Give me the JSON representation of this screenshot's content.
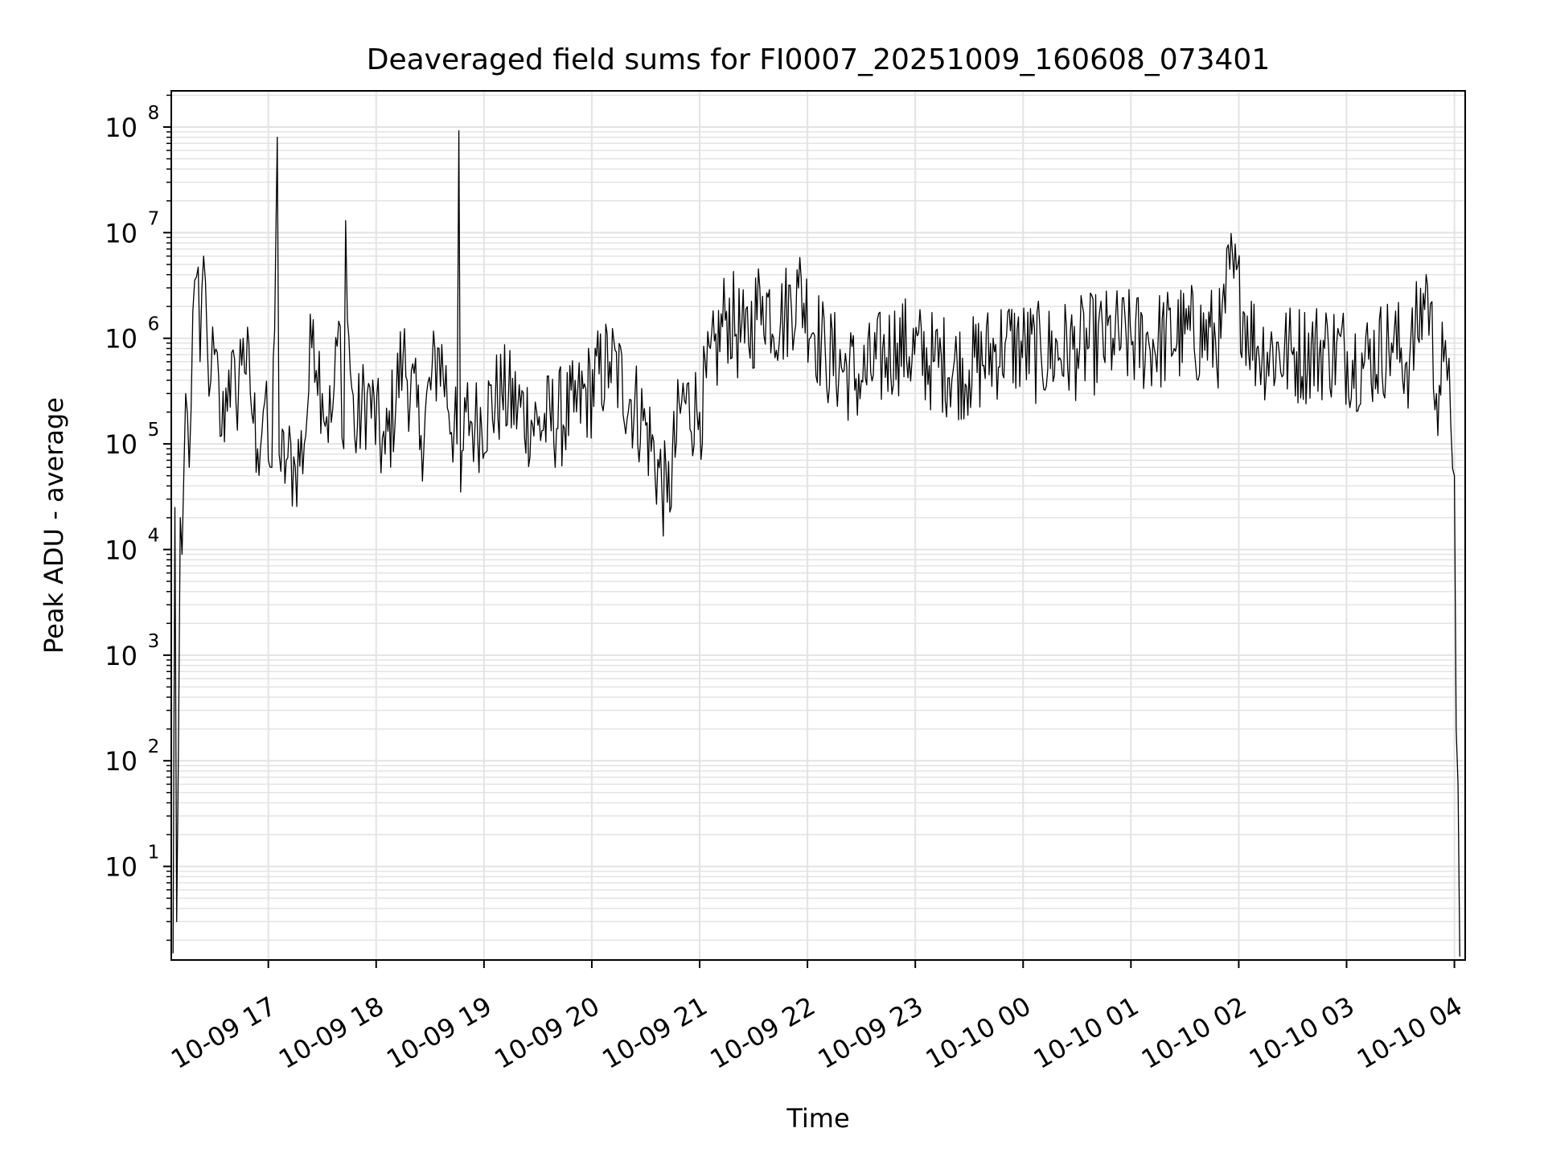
{
  "chart_data": {
    "type": "line",
    "title": "Deaveraged field sums for FI0007_20251009_160608_073401",
    "xlabel": "Time",
    "ylabel": "Peak ADU - average",
    "yscale": "log",
    "ylim": [
      1.3,
      220000000
    ],
    "xlim": [
      "2025-10-09 16:06",
      "2025-10-10 04:06"
    ],
    "grid": true,
    "line_color": "#000000",
    "grid_color": "#e3e3e3",
    "x_ticks": [
      "10-09 17",
      "10-09 18",
      "10-09 19",
      "10-09 20",
      "10-09 21",
      "10-09 22",
      "10-09 23",
      "10-10 00",
      "10-10 01",
      "10-10 02",
      "10-10 03",
      "10-10 04"
    ],
    "y_ticks": [
      {
        "value": 10,
        "base": "10",
        "exp": "1"
      },
      {
        "value": 100,
        "base": "10",
        "exp": "2"
      },
      {
        "value": 1000,
        "base": "10",
        "exp": "3"
      },
      {
        "value": 10000,
        "base": "10",
        "exp": "4"
      },
      {
        "value": 100000,
        "base": "10",
        "exp": "5"
      },
      {
        "value": 1000000,
        "base": "10",
        "exp": "6"
      },
      {
        "value": 10000000,
        "base": "10",
        "exp": "7"
      },
      {
        "value": 100000000,
        "base": "10",
        "exp": "8"
      }
    ],
    "series": [
      {
        "x": [
          "2025-10-09 16:07",
          "2025-10-09 16:08",
          "2025-10-09 16:09",
          "2025-10-09 16:10",
          "2025-10-09 16:11",
          "2025-10-09 16:12",
          "2025-10-09 16:14",
          "2025-10-09 16:16",
          "2025-10-09 16:18",
          "2025-10-09 16:20",
          "2025-10-09 16:22",
          "2025-10-09 16:24",
          "2025-10-09 16:26",
          "2025-10-09 16:28",
          "2025-10-09 16:30",
          "2025-10-09 16:34",
          "2025-10-09 16:38",
          "2025-10-09 16:42",
          "2025-10-09 16:46",
          "2025-10-09 16:50",
          "2025-10-09 16:54",
          "2025-10-09 16:58",
          "2025-10-09 17:00",
          "2025-10-09 17:02",
          "2025-10-09 17:05",
          "2025-10-09 17:06",
          "2025-10-09 17:07",
          "2025-10-09 17:10",
          "2025-10-09 17:15",
          "2025-10-09 17:20",
          "2025-10-09 17:25",
          "2025-10-09 17:30",
          "2025-10-09 17:35",
          "2025-10-09 17:40",
          "2025-10-09 17:42",
          "2025-10-09 17:43",
          "2025-10-09 17:44",
          "2025-10-09 17:48",
          "2025-10-09 17:55",
          "2025-10-09 18:05",
          "2025-10-09 18:15",
          "2025-10-09 18:25",
          "2025-10-09 18:35",
          "2025-10-09 18:45",
          "2025-10-09 18:46",
          "2025-10-09 18:47",
          "2025-10-09 18:50",
          "2025-10-09 18:55",
          "2025-10-09 19:10",
          "2025-10-09 19:30",
          "2025-10-09 19:50",
          "2025-10-09 20:10",
          "2025-10-09 20:30",
          "2025-10-09 20:42",
          "2025-10-09 20:50",
          "2025-10-09 21:00",
          "2025-10-09 21:15",
          "2025-10-09 21:25",
          "2025-10-09 21:35",
          "2025-10-09 21:45",
          "2025-10-09 21:55",
          "2025-10-09 22:10",
          "2025-10-09 22:30",
          "2025-10-09 22:50",
          "2025-10-09 23:10",
          "2025-10-09 23:30",
          "2025-10-09 23:50",
          "2025-10-10 00:10",
          "2025-10-10 00:30",
          "2025-10-10 00:50",
          "2025-10-10 01:10",
          "2025-10-10 01:30",
          "2025-10-10 01:50",
          "2025-10-10 01:55",
          "2025-10-10 02:10",
          "2025-10-10 02:30",
          "2025-10-10 02:50",
          "2025-10-10 03:10",
          "2025-10-10 03:25",
          "2025-10-10 03:35",
          "2025-10-10 03:45",
          "2025-10-10 03:50",
          "2025-10-10 03:54",
          "2025-10-10 03:56",
          "2025-10-10 03:58",
          "2025-10-10 04:00",
          "2025-10-10 04:01",
          "2025-10-10 04:02",
          "2025-10-10 04:03"
        ],
        "y": [
          1.5,
          25000,
          3,
          130,
          20000,
          9000,
          300000,
          60000,
          1800000,
          3800000,
          600000,
          6000000,
          900000,
          400000,
          700000,
          120000,
          500000,
          250000,
          1000000,
          300000,
          90000,
          250000,
          70000,
          60000,
          80000000,
          80000,
          55000,
          70000,
          60000,
          100000,
          1500000,
          300000,
          160000,
          1300000,
          90000,
          13000000,
          1500000,
          120000,
          300000,
          80000,
          700000,
          120000,
          800000,
          100000,
          92000000,
          35000,
          200000,
          150000,
          300000,
          150000,
          200000,
          600000,
          150000,
          28000,
          250000,
          200000,
          1800000,
          900000,
          2500000,
          1400000,
          3000000,
          700000,
          400000,
          900000,
          600000,
          500000,
          900000,
          700000,
          800000,
          1000000,
          900000,
          1100000,
          1000000,
          4500000,
          800000,
          700000,
          800000,
          600000,
          900000,
          600000,
          3200000,
          300000,
          600000,
          400000,
          150000,
          50000,
          200,
          60,
          1.4
        ]
      }
    ]
  }
}
